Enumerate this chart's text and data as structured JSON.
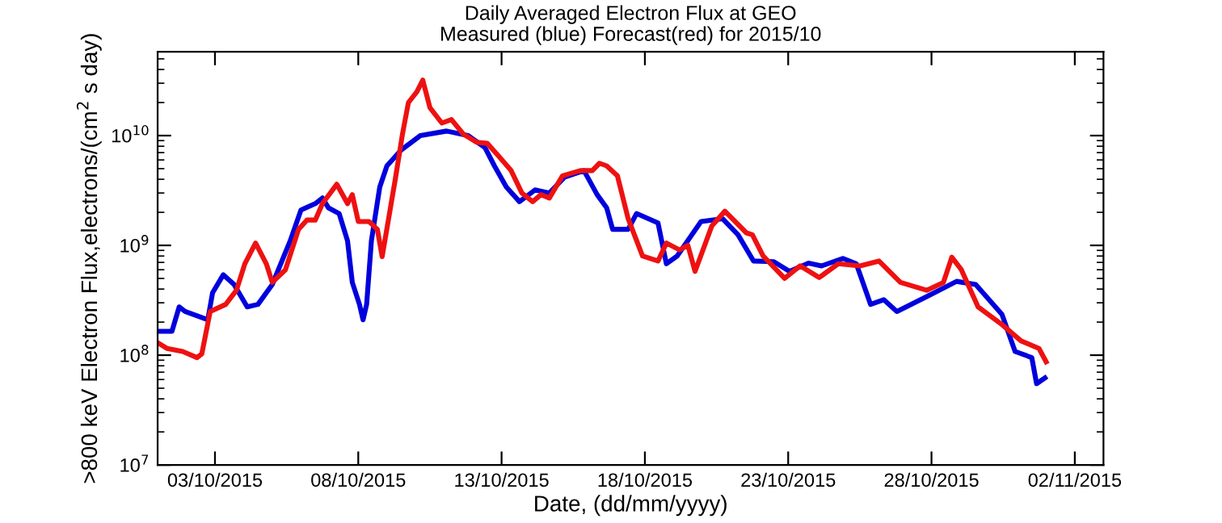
{
  "chart_data": {
    "type": "line",
    "title": "Daily Averaged Electron Flux at GEO",
    "subtitle": "Measured (blue) Forecast(red) for 2015/10",
    "xlabel": "Date, (dd/mm/yyyy)",
    "ylabel": ">800 keV Electron Flux,electrons/(cm$^{2}$ s day)",
    "log": "y",
    "grid": false,
    "line_style": "solid",
    "xlim": [
      "2015-10-01",
      "2015-11-03"
    ],
    "ylim": [
      10000000.0,
      58000000000.0
    ],
    "xticks": [
      {
        "value": "2015-10-03",
        "label": "03/10/2015"
      },
      {
        "value": "2015-10-08",
        "label": "08/10/2015"
      },
      {
        "value": "2015-10-13",
        "label": "13/10/2015"
      },
      {
        "value": "2015-10-18",
        "label": "18/10/2015"
      },
      {
        "value": "2015-10-23",
        "label": "23/10/2015"
      },
      {
        "value": "2015-10-28",
        "label": "28/10/2015"
      },
      {
        "value": "2015-11-02",
        "label": "02/11/2015"
      }
    ],
    "yticks": [
      {
        "value": 10000000.0,
        "label": "10$^{7}$"
      },
      {
        "value": 100000000.0,
        "label": "10$^{8}$"
      },
      {
        "value": 1000000000.0,
        "label": "10$^{9}$"
      },
      {
        "value": 10000000000.0,
        "label": "10$^{10}$"
      }
    ],
    "series": [
      {
        "color": "#0000dd",
        "x": [
          "2015-10-01T00:00",
          "2015-10-01T12:00",
          "2015-10-01T18:00",
          "2015-10-01T23:00",
          "2015-10-02T18:00",
          "2015-10-02T22:00",
          "2015-10-03T07:00",
          "2015-10-03T16:00",
          "2015-10-04T03:00",
          "2015-10-04T12:00",
          "2015-10-05T00:00",
          "2015-10-05T15:00",
          "2015-10-06T00:00",
          "2015-10-06T12:00",
          "2015-10-06T18:00",
          "2015-10-06T23:00",
          "2015-10-07T08:00",
          "2015-10-07T15:00",
          "2015-10-07T19:00",
          "2015-10-08T01:00",
          "2015-10-08T04:00",
          "2015-10-08T07:00",
          "2015-10-08T11:00",
          "2015-10-08T18:00",
          "2015-10-09T00:00",
          "2015-10-09T12:00",
          "2015-10-10T04:00",
          "2015-10-11T02:00",
          "2015-10-11T20:00",
          "2015-10-12T10:00",
          "2015-10-12T18:00",
          "2015-10-13T04:00",
          "2015-10-13T15:00",
          "2015-10-14T04:00",
          "2015-10-14T16:00",
          "2015-10-15T05:00",
          "2015-10-15T21:00",
          "2015-10-16T08:00",
          "2015-10-16T16:00",
          "2015-10-16T21:00",
          "2015-10-17T10:00",
          "2015-10-17T17:00",
          "2015-10-18T11:00",
          "2015-10-18T18:00",
          "2015-10-19T03:00",
          "2015-10-19T23:00",
          "2015-10-20T17:00",
          "2015-10-21T06:00",
          "2015-10-21T19:00",
          "2015-10-22T12:00",
          "2015-10-23T01:00",
          "2015-10-23T17:00",
          "2015-10-24T04:00",
          "2015-10-24T22:00",
          "2015-10-25T09:00",
          "2015-10-25T21:00",
          "2015-10-26T08:00",
          "2015-10-26T19:00",
          "2015-10-27T22:00",
          "2015-10-28T21:00",
          "2015-10-29T13:00",
          "2015-10-30T11:00",
          "2015-10-30T22:00",
          "2015-10-31T12:00",
          "2015-10-31T16:00",
          "2015-10-31T23:00"
        ],
        "values": [
          165000000.0,
          165000000.0,
          275000000.0,
          250000000.0,
          210000000.0,
          370000000.0,
          540000000.0,
          440000000.0,
          275000000.0,
          290000000.0,
          440000000.0,
          1100000000.0,
          2100000000.0,
          2400000000.0,
          2700000000.0,
          2200000000.0,
          1950000000.0,
          1100000000.0,
          460000000.0,
          290000000.0,
          210000000.0,
          290000000.0,
          1100000000.0,
          3400000000.0,
          5300000000.0,
          7400000000.0,
          10000000000.0,
          11000000000.0,
          10000000000.0,
          7800000000.0,
          5300000000.0,
          3400000000.0,
          2500000000.0,
          3200000000.0,
          3000000000.0,
          4200000000.0,
          4800000000.0,
          2900000000.0,
          2200000000.0,
          1400000000.0,
          1400000000.0,
          1950000000.0,
          1600000000.0,
          680000000.0,
          800000000.0,
          1650000000.0,
          1750000000.0,
          1250000000.0,
          720000000.0,
          710000000.0,
          580000000.0,
          690000000.0,
          650000000.0,
          760000000.0,
          680000000.0,
          290000000.0,
          320000000.0,
          250000000.0,
          350000000.0,
          470000000.0,
          440000000.0,
          235000000.0,
          108000000.0,
          95000000.0,
          55000000.0,
          62000000.0
        ]
      },
      {
        "color": "#ee1111",
        "x": [
          "2015-10-01T00:00",
          "2015-10-01T08:00",
          "2015-10-01T21:00",
          "2015-10-02T09:00",
          "2015-10-02T13:00",
          "2015-10-02T20:00",
          "2015-10-03T09:00",
          "2015-10-03T18:00",
          "2015-10-04T01:00",
          "2015-10-04T10:00",
          "2015-10-04T19:00",
          "2015-10-05T00:00",
          "2015-10-05T11:00",
          "2015-10-05T22:00",
          "2015-10-06T05:00",
          "2015-10-06T12:00",
          "2015-10-06T18:00",
          "2015-10-07T06:00",
          "2015-10-07T15:00",
          "2015-10-07T19:00",
          "2015-10-08T00:00",
          "2015-10-08T09:00",
          "2015-10-08T16:00",
          "2015-10-08T20:00",
          "2015-10-09T07:00",
          "2015-10-09T13:00",
          "2015-10-09T18:00",
          "2015-10-10T01:00",
          "2015-10-10T06:00",
          "2015-10-10T12:00",
          "2015-10-10T22:00",
          "2015-10-11T06:00",
          "2015-10-11T16:00",
          "2015-10-12T03:00",
          "2015-10-12T12:00",
          "2015-10-12T21:00",
          "2015-10-13T08:00",
          "2015-10-13T17:00",
          "2015-10-14T02:00",
          "2015-10-14T09:00",
          "2015-10-14T16:00",
          "2015-10-15T03:00",
          "2015-10-15T18:00",
          "2015-10-16T04:00",
          "2015-10-16T10:00",
          "2015-10-16T16:00",
          "2015-10-17T01:00",
          "2015-10-17T10:00",
          "2015-10-17T22:00",
          "2015-10-18T11:00",
          "2015-10-18T18:00",
          "2015-10-19T05:00",
          "2015-10-19T12:00",
          "2015-10-19T18:00",
          "2015-10-20T08:00",
          "2015-10-20T19:00",
          "2015-10-21T13:00",
          "2015-10-21T18:00",
          "2015-10-22T03:00",
          "2015-10-22T21:00",
          "2015-10-23T10:00",
          "2015-10-24T02:00",
          "2015-10-24T18:00",
          "2015-10-25T12:00",
          "2015-10-26T04:00",
          "2015-10-26T22:00",
          "2015-10-27T20:00",
          "2015-10-28T10:00",
          "2015-10-28T17:00",
          "2015-10-29T01:00",
          "2015-10-29T15:00",
          "2015-10-30T11:00",
          "2015-10-31T03:00",
          "2015-10-31T18:00",
          "2015-11-01T00:00"
        ],
        "values": [
          130000000.0,
          115000000.0,
          108000000.0,
          95000000.0,
          103000000.0,
          250000000.0,
          290000000.0,
          390000000.0,
          680000000.0,
          1050000000.0,
          680000000.0,
          460000000.0,
          600000000.0,
          1400000000.0,
          1700000000.0,
          1700000000.0,
          2400000000.0,
          3600000000.0,
          2400000000.0,
          2900000000.0,
          1650000000.0,
          1650000000.0,
          1400000000.0,
          790000000.0,
          4000000000.0,
          10300000000.0,
          20000000000.0,
          25000000000.0,
          32000000000.0,
          18000000000.0,
          13000000000.0,
          14000000000.0,
          10300000000.0,
          8700000000.0,
          8500000000.0,
          6600000000.0,
          4800000000.0,
          3000000000.0,
          2500000000.0,
          2900000000.0,
          2700000000.0,
          4300000000.0,
          4800000000.0,
          4800000000.0,
          5600000000.0,
          5300000000.0,
          4300000000.0,
          1750000000.0,
          800000000.0,
          720000000.0,
          1050000000.0,
          910000000.0,
          1000000000.0,
          580000000.0,
          1500000000.0,
          2050000000.0,
          1300000000.0,
          1250000000.0,
          800000000.0,
          500000000.0,
          650000000.0,
          510000000.0,
          680000000.0,
          650000000.0,
          720000000.0,
          460000000.0,
          390000000.0,
          460000000.0,
          780000000.0,
          600000000.0,
          275000000.0,
          190000000.0,
          135000000.0,
          115000000.0,
          87000000.0
        ]
      }
    ]
  }
}
